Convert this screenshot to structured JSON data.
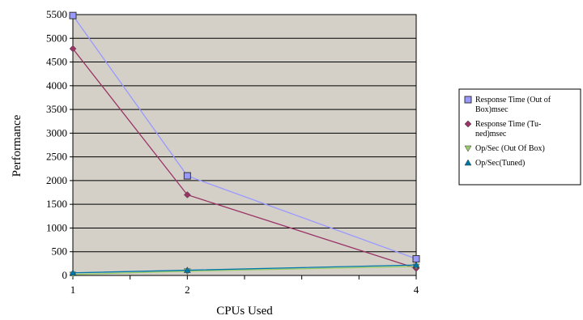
{
  "chart_data": {
    "type": "line",
    "x": [
      1,
      2,
      4
    ],
    "xticks": [
      "1",
      "2",
      "4"
    ],
    "xlabel": "CPUs Used",
    "ylabel": "Performance",
    "ylim": [
      0,
      5500
    ],
    "yticks": [
      "0",
      "500",
      "1000",
      "1500",
      "2000",
      "2500",
      "3000",
      "3500",
      "4000",
      "4500",
      "5000",
      "5500"
    ],
    "grid": true,
    "legend": "right",
    "plot_background": "#d4d0c8",
    "series": [
      {
        "name": "Response Time (Out of Box)msec",
        "legend_lines": [
          "Response Time (Out of",
          "Box)msec"
        ],
        "values": [
          5480,
          2100,
          350
        ],
        "color": "#9999ff",
        "marker": "square"
      },
      {
        "name": "Response Time (Tuned)msec",
        "legend_lines": [
          "Response Time (Tu-",
          "ned)msec"
        ],
        "values": [
          4780,
          1700,
          150
        ],
        "color": "#993366",
        "marker": "diamond"
      },
      {
        "name": "Op/Sec (Out Of Box)",
        "legend_lines": [
          "Op/Sec (Out Of Box)"
        ],
        "values": [
          20,
          90,
          190
        ],
        "color": "#99cc66",
        "marker": "triangle-down"
      },
      {
        "name": "Op/Sec(Tuned)",
        "legend_lines": [
          "Op/Sec(Tuned)"
        ],
        "values": [
          55,
          110,
          220
        ],
        "color": "#0077aa",
        "marker": "triangle-up"
      }
    ]
  }
}
